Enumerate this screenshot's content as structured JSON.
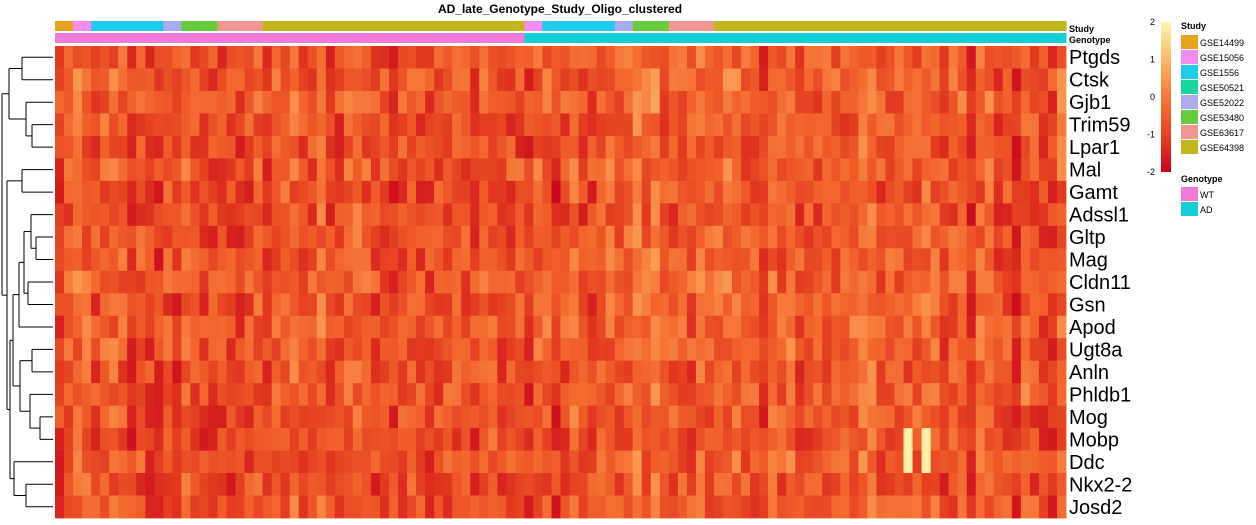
{
  "chart_data": {
    "type": "heatmap",
    "title": "AD_late_Genotype_Study_Oligo_clustered",
    "n_columns": 112,
    "rows": [
      "Ptgds",
      "Ctsk",
      "Gjb1",
      "Trim59",
      "Lpar1",
      "Mal",
      "Gamt",
      "Adssl1",
      "Gltp",
      "Mag",
      "Cldn11",
      "Gsn",
      "Apod",
      "Ugt8a",
      "Anln",
      "Phldb1",
      "Mog",
      "Mobp",
      "Ddc",
      "Nkx2-2",
      "Josd2"
    ],
    "annotation_track_labels": [
      "Study",
      "Genotype"
    ],
    "study_segments": [
      {
        "study": "GSE14499",
        "count": 2
      },
      {
        "study": "GSE15056",
        "count": 2
      },
      {
        "study": "GSE1556",
        "count": 8
      },
      {
        "study": "GSE52022",
        "count": 2
      },
      {
        "study": "GSE53480",
        "count": 4
      },
      {
        "study": "GSE63617",
        "count": 5
      },
      {
        "study": "GSE64398",
        "count": 29
      },
      {
        "study": "GSE15056",
        "count": 2
      },
      {
        "study": "GSE1556",
        "count": 8
      },
      {
        "study": "GSE52022",
        "count": 2
      },
      {
        "study": "GSE53480",
        "count": 4
      },
      {
        "study": "GSE63617",
        "count": 5
      },
      {
        "study": "GSE64398",
        "count": 39
      }
    ],
    "genotype_segments": [
      {
        "genotype": "WT",
        "count": 52
      },
      {
        "genotype": "AD",
        "count": 60
      }
    ],
    "color_scale": {
      "min": -2,
      "max": 2,
      "ticks": [
        "2",
        "1",
        "0",
        "-1",
        "-2"
      ],
      "colors": [
        "#C8001F",
        "#E2381F",
        "#F2622A",
        "#F8924A",
        "#FCC673",
        "#FFF5B0"
      ]
    },
    "legend": {
      "study_title": "Study",
      "study_entries": [
        {
          "label": "GSE14499",
          "color": "#E8A21E"
        },
        {
          "label": "GSE15056",
          "color": "#F58CF0"
        },
        {
          "label": "GSE1556",
          "color": "#1FCBEA"
        },
        {
          "label": "GSE50521",
          "color": "#19D3A1"
        },
        {
          "label": "GSE52022",
          "color": "#AAAAEE"
        },
        {
          "label": "GSE53480",
          "color": "#66CC3C"
        },
        {
          "label": "GSE63617",
          "color": "#F09890"
        },
        {
          "label": "GSE64398",
          "color": "#C4B51A"
        }
      ],
      "genotype_title": "Genotype",
      "genotype_entries": [
        {
          "label": "WT",
          "color": "#F07AD8"
        },
        {
          "label": "AD",
          "color": "#14CFD6"
        }
      ]
    }
  }
}
